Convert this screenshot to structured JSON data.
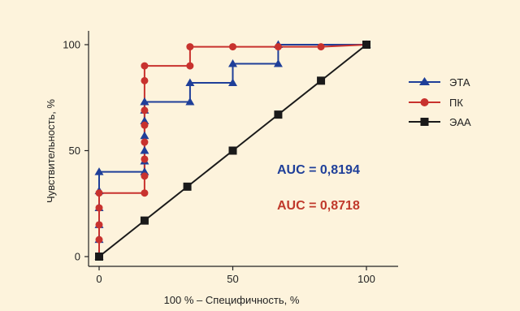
{
  "chart_data": {
    "type": "line",
    "xlabel": "100 % – Специфичность, %",
    "ylabel": "Чувствительность, %",
    "xlim": [
      0,
      100
    ],
    "ylim": [
      0,
      100
    ],
    "xticks": [
      0,
      50,
      100
    ],
    "yticks": [
      0,
      50,
      100
    ],
    "grid": false,
    "legend_position": "right",
    "series": [
      {
        "name": "ЭТА",
        "color": "#1f3f99",
        "marker": "triangle",
        "x": [
          0,
          0,
          0,
          0,
          0,
          0,
          17,
          17,
          17,
          17,
          17,
          17,
          17,
          17,
          34,
          34,
          50,
          50,
          67,
          67,
          100
        ],
        "y": [
          0,
          8,
          15,
          23,
          31,
          40,
          40,
          45,
          50,
          57,
          64,
          69,
          73,
          73,
          73,
          82,
          82,
          91,
          91,
          100,
          100
        ]
      },
      {
        "name": "ПК",
        "color": "#c8322e",
        "marker": "circle",
        "x": [
          0,
          0,
          0,
          0,
          0,
          17,
          17,
          17,
          17,
          17,
          17,
          17,
          17,
          34,
          34,
          50,
          67,
          83,
          100
        ],
        "y": [
          0,
          8,
          15,
          23,
          30,
          30,
          38,
          46,
          54,
          62,
          69,
          83,
          90,
          90,
          99,
          99,
          99,
          99,
          100
        ]
      },
      {
        "name": "ЭАА",
        "color": "#1a1a1a",
        "marker": "square",
        "x": [
          0,
          17,
          33,
          50,
          67,
          83,
          100
        ],
        "y": [
          0,
          17,
          33,
          50,
          67,
          83,
          100
        ]
      }
    ],
    "annotations": [
      {
        "text": "AUC = 0,8194",
        "color": "#1f3f99"
      },
      {
        "text": "AUC = 0,8718",
        "color": "#c0392b"
      }
    ]
  }
}
